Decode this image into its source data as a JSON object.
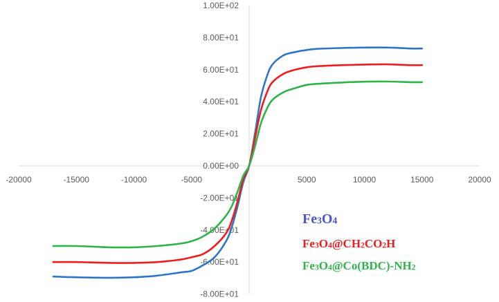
{
  "chart_data": {
    "type": "line",
    "xlim": [
      -20000,
      20000
    ],
    "ylim": [
      -80,
      100
    ],
    "x_ticks": [
      -20000,
      -15000,
      -10000,
      -5000,
      0,
      5000,
      10000,
      15000,
      20000
    ],
    "x_tick_labels": [
      "-20000",
      "-15000",
      "-10000",
      "-5000",
      "",
      "5000",
      "10000",
      "15000",
      "20000"
    ],
    "y_ticks": [
      100,
      80,
      60,
      40,
      20,
      0,
      -20,
      -40,
      -60,
      -80
    ],
    "y_tick_labels": [
      "1.00E+02",
      "8.00E+01",
      "6.00E+01",
      "4.00E+01",
      "2.00E+01",
      "0.00E+00",
      "-2.00E+01",
      "-4.00E+01",
      "-6.00E+01",
      "-8.00E+01"
    ],
    "grid": false,
    "legend_position": "bottom-right",
    "series": [
      {
        "name": "Fe3O4",
        "legend_main": [
          "Fe",
          "3",
          "O",
          "4",
          ""
        ],
        "color": "#2E75C8",
        "legend_color": "#4A55C8",
        "x": [
          -17000,
          -15000,
          -12000,
          -10000,
          -8000,
          -6000,
          -5000,
          -4000,
          -3000,
          -2000,
          -1500,
          -1000,
          -500,
          0,
          500,
          1000,
          1500,
          2000,
          3000,
          4000,
          5000,
          6000,
          8000,
          10000,
          12000,
          14000,
          15000
        ],
        "y": [
          -69,
          -69.5,
          -69.8,
          -69.5,
          -68.5,
          -66.5,
          -65.5,
          -62,
          -57,
          -47,
          -38,
          -25,
          -10,
          0,
          20,
          42,
          55,
          63,
          69,
          71,
          72.3,
          73,
          73.5,
          73.8,
          73.8,
          73.2,
          73.2
        ]
      },
      {
        "name": "Fe3O4@CH2CO2H",
        "legend_main": [
          "Fe",
          "3",
          "O",
          "4",
          "@CH",
          "2",
          "CO",
          "2",
          "H"
        ],
        "color": "#EE1C1C",
        "legend_color": "#EE1C1C",
        "x": [
          -17000,
          -15000,
          -12000,
          -10000,
          -8000,
          -6000,
          -5000,
          -4000,
          -3000,
          -2000,
          -1500,
          -1000,
          -500,
          0,
          500,
          1000,
          1500,
          2000,
          3000,
          4000,
          5000,
          6000,
          8000,
          10000,
          12000,
          14000,
          15000
        ],
        "y": [
          -60,
          -60,
          -60.5,
          -60.5,
          -60,
          -58.5,
          -57,
          -55,
          -50,
          -42,
          -34,
          -22,
          -8,
          0,
          17,
          34,
          45,
          52,
          57.5,
          60,
          61.5,
          62.2,
          62.8,
          63.2,
          63.3,
          62.8,
          62.8
        ]
      },
      {
        "name": "Fe3O4@Co(BDC)-NH2",
        "legend_main": [
          "Fe",
          "3",
          "O",
          "4",
          "@Co(BDC)-NH",
          "2"
        ],
        "color": "#2DB34A",
        "legend_color": "#2DB34A",
        "x": [
          -17000,
          -15000,
          -12000,
          -10000,
          -8000,
          -6000,
          -5000,
          -4000,
          -3000,
          -2000,
          -1500,
          -1000,
          -500,
          0,
          500,
          1000,
          1500,
          2000,
          3000,
          4000,
          5000,
          6000,
          8000,
          10000,
          12000,
          14000,
          15000
        ],
        "y": [
          -50,
          -50,
          -50.8,
          -50.8,
          -50,
          -48.5,
          -47,
          -44,
          -39,
          -31,
          -25,
          -16,
          -6,
          0,
          12,
          26,
          35,
          41,
          46,
          48.5,
          50.5,
          51.2,
          52,
          52.5,
          52.6,
          52.2,
          52.2
        ]
      }
    ]
  }
}
